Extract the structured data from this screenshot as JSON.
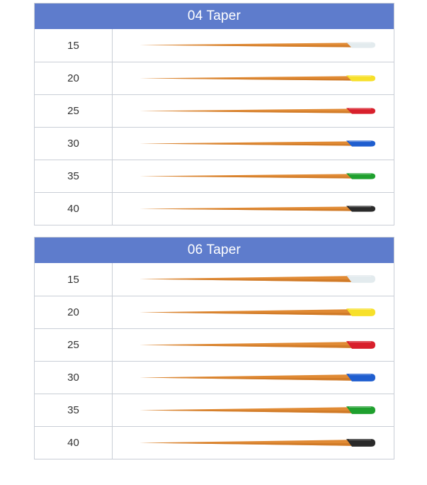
{
  "tables": [
    {
      "title": "04 Taper",
      "taper": "04",
      "rows": [
        {
          "size": "15",
          "tip_color": "#e3ebee"
        },
        {
          "size": "20",
          "tip_color": "#f7e02a"
        },
        {
          "size": "25",
          "tip_color": "#d8202c"
        },
        {
          "size": "30",
          "tip_color": "#1f5ecf"
        },
        {
          "size": "35",
          "tip_color": "#1fa02e"
        },
        {
          "size": "40",
          "tip_color": "#2a2a2a"
        }
      ]
    },
    {
      "title": "06 Taper",
      "taper": "06",
      "rows": [
        {
          "size": "15",
          "tip_color": "#e3ebee"
        },
        {
          "size": "20",
          "tip_color": "#f7e02a"
        },
        {
          "size": "25",
          "tip_color": "#d8202c"
        },
        {
          "size": "30",
          "tip_color": "#1f5ecf"
        },
        {
          "size": "35",
          "tip_color": "#1fa02e"
        },
        {
          "size": "40",
          "tip_color": "#2a2a2a"
        }
      ]
    }
  ],
  "colors": {
    "header_bg": "#5e7ccc",
    "point_body": "#e08a34",
    "point_shade": "#c46f1f",
    "grid": "#c9ced6"
  }
}
